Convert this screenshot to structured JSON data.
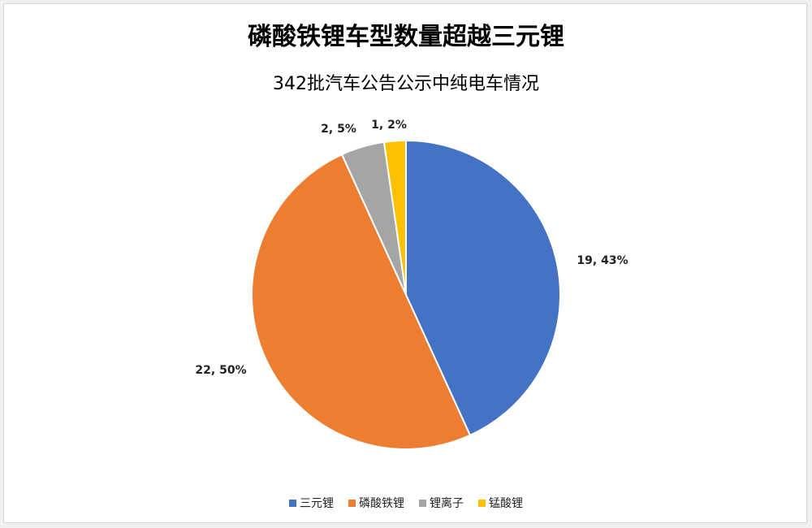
{
  "title": "磷酸铁锂车型数量超越三元锂",
  "subtitle": "342批汽车公告公示中纯电车情况",
  "chart_data": {
    "type": "pie",
    "title": "磷酸铁锂车型数量超越三元锂",
    "subtitle": "342批汽车公告公示中纯电车情况",
    "slices": [
      {
        "name": "三元锂",
        "value": 19,
        "percent": 43,
        "label": "19, 43%",
        "color": "#4472c4"
      },
      {
        "name": "磷酸铁锂",
        "value": 22,
        "percent": 50,
        "label": "22, 50%",
        "color": "#ed7d31"
      },
      {
        "name": "锂离子",
        "value": 2,
        "percent": 5,
        "label": "2, 5%",
        "color": "#a5a5a5"
      },
      {
        "name": "锰酸锂",
        "value": 1,
        "percent": 2,
        "label": "1, 2%",
        "color": "#ffc000"
      }
    ],
    "start_angle": "12 o'clock, clockwise",
    "legend_position": "bottom"
  }
}
